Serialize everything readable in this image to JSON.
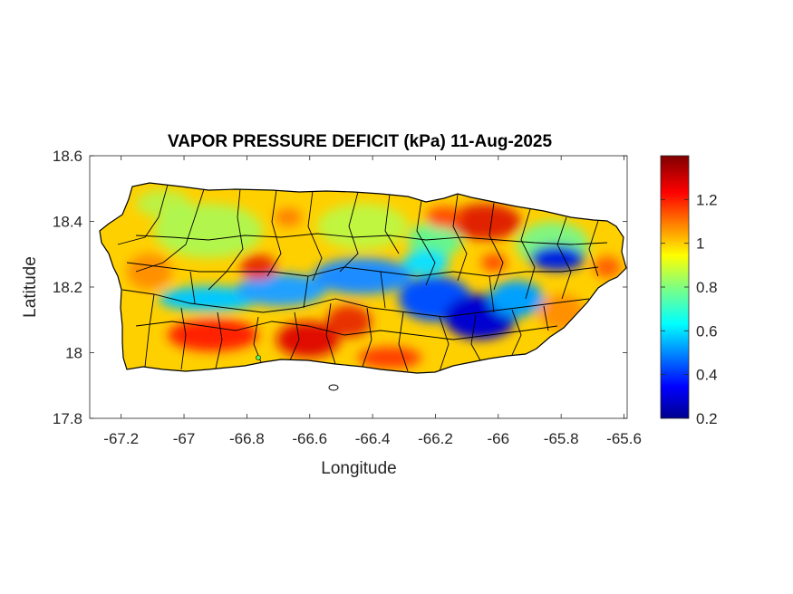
{
  "chart_data": {
    "type": "heatmap",
    "title": "VAPOR PRESSURE DEFICIT (kPa) 11-Aug-2025",
    "xlabel": "Longitude",
    "ylabel": "Latitude",
    "xlim": [
      -67.3,
      -65.59
    ],
    "ylim": [
      17.8,
      18.6
    ],
    "x_ticks": [
      "-67.2",
      "-67",
      "-66.8",
      "-66.6",
      "-66.4",
      "-66.2",
      "-66",
      "-65.8",
      "-65.6"
    ],
    "y_ticks": [
      "18.6",
      "18.4",
      "18.2",
      "18",
      "17.8"
    ],
    "colorbar": {
      "colormap": "jet",
      "range": [
        0.2,
        1.4
      ],
      "ticks": [
        "1.2",
        "1",
        "0.8",
        "0.6",
        "0.4",
        "0.2"
      ]
    },
    "regions": [
      {
        "desc": "high VPD south coast",
        "lon": -66.9,
        "lat": 18.02,
        "value": 1.3
      },
      {
        "desc": "high VPD south-central",
        "lon": -66.6,
        "lat": 18.03,
        "value": 1.35
      },
      {
        "desc": "high VPD south",
        "lon": -66.45,
        "lat": 18.05,
        "value": 1.3
      },
      {
        "desc": "high VPD north-east",
        "lon": -66.05,
        "lat": 18.41,
        "value": 1.3
      },
      {
        "desc": "high VPD north",
        "lon": -66.2,
        "lat": 18.42,
        "value": 1.2
      },
      {
        "desc": "high VPD west-central",
        "lon": -66.75,
        "lat": 18.26,
        "value": 1.25
      },
      {
        "desc": "low VPD central-east",
        "lon": -66.05,
        "lat": 18.1,
        "value": 0.25
      },
      {
        "desc": "low VPD central",
        "lon": -66.2,
        "lat": 18.13,
        "value": 0.35
      },
      {
        "desc": "low VPD east",
        "lon": -65.8,
        "lat": 18.29,
        "value": 0.3
      },
      {
        "desc": "low VPD cordillera west",
        "lon": -66.75,
        "lat": 18.17,
        "value": 0.55
      },
      {
        "desc": "low VPD cordillera",
        "lon": -66.45,
        "lat": 18.2,
        "value": 0.55
      }
    ]
  }
}
